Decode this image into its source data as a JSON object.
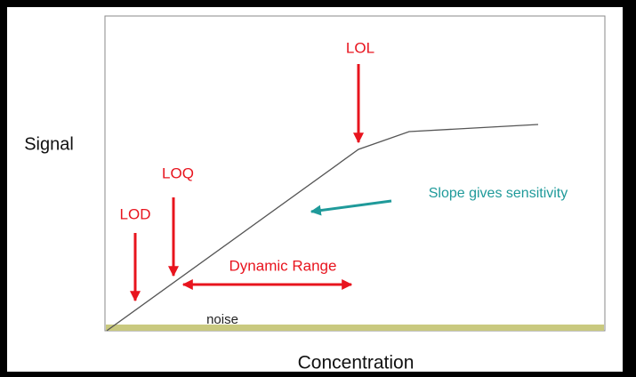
{
  "y_axis_label": "Signal",
  "x_axis_label": "Concentration",
  "annotations": {
    "lol": "LOL",
    "loq": "LOQ",
    "lod": "LOD",
    "dynamic_range": "Dynamic Range",
    "slope": "Slope gives sensitivity",
    "noise": "noise"
  }
}
